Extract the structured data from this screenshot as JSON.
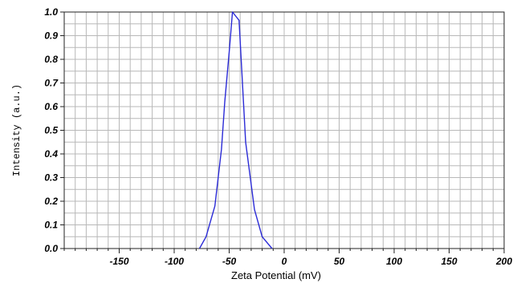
{
  "chart_data": {
    "type": "line",
    "xlabel": "Zeta Potential (mV)",
    "ylabel": "Intensity (a.u.)",
    "xlim": [
      -200,
      200
    ],
    "ylim": [
      0,
      1
    ],
    "x_ticks": [
      -150,
      -100,
      -50,
      0,
      50,
      100,
      150,
      200
    ],
    "x_tick_labels": [
      "-150",
      "-100",
      "-50",
      "0",
      "50",
      "100",
      "150",
      "200"
    ],
    "y_ticks": [
      0,
      0.1,
      0.2,
      0.3,
      0.4,
      0.5,
      0.6,
      0.7,
      0.8,
      0.9,
      1.0
    ],
    "y_tick_labels": [
      "0.0",
      "0.1",
      "0.2",
      "0.3",
      "0.4",
      "0.5",
      "0.6",
      "0.7",
      "0.8",
      "0.9",
      "1.0"
    ],
    "grid": true,
    "series": [
      {
        "color": "#2b2bd6",
        "x": [
          -77,
          -71,
          -63,
          -57,
          -54,
          -50,
          -47,
          -41,
          -35,
          -27,
          -20,
          -11
        ],
        "y": [
          0.0,
          0.05,
          0.18,
          0.42,
          0.62,
          0.83,
          1.0,
          0.965,
          0.45,
          0.165,
          0.05,
          0.0
        ]
      }
    ]
  }
}
